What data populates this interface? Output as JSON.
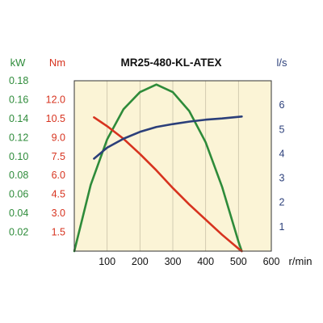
{
  "chart_data": {
    "type": "line",
    "title": "MR25-480-KL-ATEX",
    "axes": {
      "kw": {
        "unit": "kW",
        "color": "#2e8b3a",
        "ticks": [
          "0.02",
          "0.04",
          "0.06",
          "0.08",
          "0.10",
          "0.12",
          "0.14",
          "0.16",
          "0.18"
        ],
        "range": [
          0,
          0.18
        ]
      },
      "nm": {
        "unit": "Nm",
        "color": "#d7331f",
        "ticks": [
          "1.5",
          "3.0",
          "4.5",
          "6.0",
          "7.5",
          "9.0",
          "10.5",
          "12.0"
        ],
        "range": [
          0,
          13.5
        ]
      },
      "ls": {
        "unit": "l/s",
        "color": "#2b3f7a",
        "ticks": [
          "1",
          "2",
          "3",
          "4",
          "5",
          "6"
        ],
        "range": [
          0,
          7
        ]
      },
      "x": {
        "unit": "r/min",
        "ticks": [
          "100",
          "200",
          "300",
          "400",
          "500",
          "600"
        ],
        "range": [
          0,
          600
        ]
      }
    },
    "series": [
      {
        "axis": "kw",
        "color": "#2e8b3a",
        "x": [
          0,
          50,
          100,
          150,
          200,
          250,
          300,
          350,
          400,
          450,
          500,
          510
        ],
        "y": [
          0,
          0.07,
          0.118,
          0.15,
          0.168,
          0.176,
          0.168,
          0.148,
          0.115,
          0.068,
          0.01,
          0
        ]
      },
      {
        "axis": "nm",
        "color": "#d7331f",
        "x": [
          60,
          100,
          150,
          200,
          250,
          300,
          350,
          400,
          450,
          500,
          510
        ],
        "y": [
          10.6,
          9.9,
          8.9,
          7.7,
          6.4,
          5.0,
          3.7,
          2.5,
          1.3,
          0.2,
          0
        ]
      },
      {
        "axis": "ls",
        "color": "#2b3f7a",
        "x": [
          60,
          100,
          150,
          200,
          250,
          300,
          350,
          400,
          450,
          510
        ],
        "y": [
          3.8,
          4.25,
          4.62,
          4.9,
          5.1,
          5.22,
          5.32,
          5.4,
          5.45,
          5.53
        ]
      }
    ],
    "background": "#fbf4d6",
    "grid": true
  }
}
